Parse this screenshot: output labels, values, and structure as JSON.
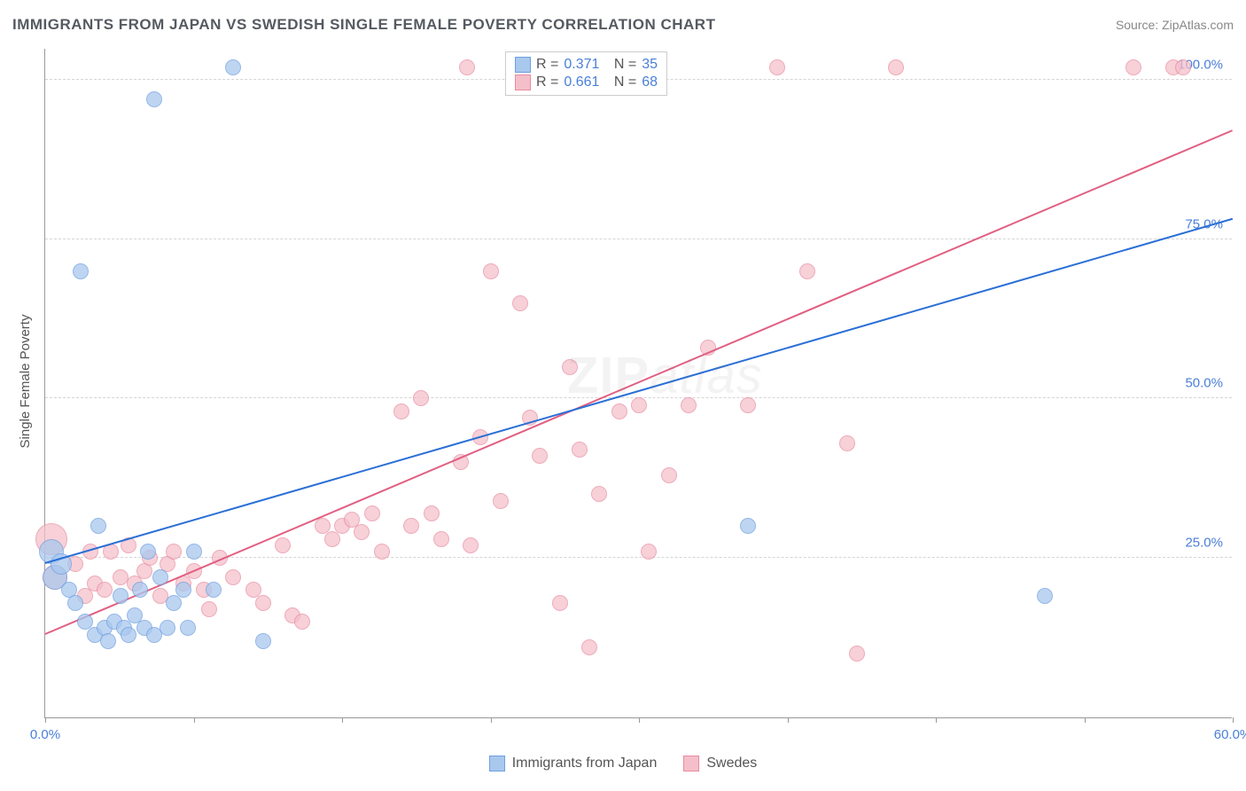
{
  "header": {
    "title": "IMMIGRANTS FROM JAPAN VS SWEDISH SINGLE FEMALE POVERTY CORRELATION CHART",
    "source": "Source: ZipAtlas.com"
  },
  "watermark": {
    "bold": "ZIP",
    "light": "atlas"
  },
  "chart": {
    "type": "scatter",
    "background_color": "#ffffff",
    "grid_color": "#d5d5d5",
    "axis_color": "#999999",
    "text_color": "#555a60",
    "value_color": "#4a7fd8",
    "xlim": [
      0,
      60
    ],
    "ylim": [
      0,
      105
    ],
    "xticks": [
      0,
      7.5,
      15,
      22.5,
      30,
      37.5,
      45,
      52.5,
      60
    ],
    "xtick_labels": {
      "0": "0.0%",
      "60": "60.0%"
    },
    "yticks": [
      25,
      50,
      75,
      100
    ],
    "ytick_labels": {
      "25": "25.0%",
      "50": "50.0%",
      "75": "75.0%",
      "100": "100.0%"
    },
    "yaxis_label": "Single Female Poverty",
    "point_radius": 9,
    "point_radius_large": 14,
    "series_a": {
      "label": "Immigrants from Japan",
      "fill_color": "#a9c8ee",
      "stroke_color": "#6fa0df",
      "opacity": 0.75,
      "line_color": "#2a6fd6",
      "line_width": 2,
      "trend": {
        "x1": 0,
        "y1": 24,
        "x2": 60,
        "y2": 78
      },
      "corr": {
        "r": "0.371",
        "n": "35"
      },
      "points": [
        {
          "x": 0.5,
          "y": 22,
          "r": 14
        },
        {
          "x": 0.3,
          "y": 26,
          "r": 14
        },
        {
          "x": 0.8,
          "y": 24,
          "r": 12
        },
        {
          "x": 9.5,
          "y": 102
        },
        {
          "x": 5.5,
          "y": 97
        },
        {
          "x": 1.8,
          "y": 70
        },
        {
          "x": 2.7,
          "y": 30
        },
        {
          "x": 1.2,
          "y": 20
        },
        {
          "x": 1.5,
          "y": 18
        },
        {
          "x": 2.0,
          "y": 15
        },
        {
          "x": 2.5,
          "y": 13
        },
        {
          "x": 3.0,
          "y": 14
        },
        {
          "x": 3.2,
          "y": 12
        },
        {
          "x": 3.5,
          "y": 15
        },
        {
          "x": 3.8,
          "y": 19
        },
        {
          "x": 4.0,
          "y": 14
        },
        {
          "x": 4.2,
          "y": 13
        },
        {
          "x": 4.5,
          "y": 16
        },
        {
          "x": 4.8,
          "y": 20
        },
        {
          "x": 5.0,
          "y": 14
        },
        {
          "x": 5.2,
          "y": 26
        },
        {
          "x": 5.5,
          "y": 13
        },
        {
          "x": 5.8,
          "y": 22
        },
        {
          "x": 6.2,
          "y": 14
        },
        {
          "x": 6.5,
          "y": 18
        },
        {
          "x": 7.0,
          "y": 20
        },
        {
          "x": 7.2,
          "y": 14
        },
        {
          "x": 7.5,
          "y": 26
        },
        {
          "x": 8.5,
          "y": 20
        },
        {
          "x": 11.0,
          "y": 12
        },
        {
          "x": 35.5,
          "y": 30
        },
        {
          "x": 50.5,
          "y": 19
        },
        {
          "x": 28.2,
          "y": 102
        },
        {
          "x": 28.8,
          "y": 102
        },
        {
          "x": 30.0,
          "y": 102
        }
      ]
    },
    "series_b": {
      "label": "Swedes",
      "fill_color": "#f4bfca",
      "stroke_color": "#e88ba0",
      "opacity": 0.72,
      "line_color": "#e15f82",
      "line_width": 2,
      "trend": {
        "x1": 0,
        "y1": 13,
        "x2": 60,
        "y2": 92
      },
      "corr": {
        "r": "0.661",
        "n": "68"
      },
      "points": [
        {
          "x": 0.3,
          "y": 28,
          "r": 18
        },
        {
          "x": 0.5,
          "y": 22,
          "r": 14
        },
        {
          "x": 1.5,
          "y": 24
        },
        {
          "x": 2.0,
          "y": 19
        },
        {
          "x": 2.3,
          "y": 26
        },
        {
          "x": 2.5,
          "y": 21
        },
        {
          "x": 3.0,
          "y": 20
        },
        {
          "x": 3.3,
          "y": 26
        },
        {
          "x": 3.8,
          "y": 22
        },
        {
          "x": 4.2,
          "y": 27
        },
        {
          "x": 4.5,
          "y": 21
        },
        {
          "x": 5.0,
          "y": 23
        },
        {
          "x": 5.3,
          "y": 25
        },
        {
          "x": 5.8,
          "y": 19
        },
        {
          "x": 6.2,
          "y": 24
        },
        {
          "x": 6.5,
          "y": 26
        },
        {
          "x": 7.0,
          "y": 21
        },
        {
          "x": 7.5,
          "y": 23
        },
        {
          "x": 8.0,
          "y": 20
        },
        {
          "x": 8.3,
          "y": 17
        },
        {
          "x": 8.8,
          "y": 25
        },
        {
          "x": 9.5,
          "y": 22
        },
        {
          "x": 10.5,
          "y": 20
        },
        {
          "x": 11.0,
          "y": 18
        },
        {
          "x": 12.0,
          "y": 27
        },
        {
          "x": 12.5,
          "y": 16
        },
        {
          "x": 13.0,
          "y": 15
        },
        {
          "x": 14.0,
          "y": 30
        },
        {
          "x": 14.5,
          "y": 28
        },
        {
          "x": 15.0,
          "y": 30
        },
        {
          "x": 15.5,
          "y": 31
        },
        {
          "x": 16.0,
          "y": 29
        },
        {
          "x": 16.5,
          "y": 32
        },
        {
          "x": 17.0,
          "y": 26
        },
        {
          "x": 18.0,
          "y": 48
        },
        {
          "x": 18.5,
          "y": 30
        },
        {
          "x": 19.0,
          "y": 50
        },
        {
          "x": 19.5,
          "y": 32
        },
        {
          "x": 20.0,
          "y": 28
        },
        {
          "x": 21.0,
          "y": 40
        },
        {
          "x": 21.5,
          "y": 27
        },
        {
          "x": 21.3,
          "y": 102
        },
        {
          "x": 22.0,
          "y": 44
        },
        {
          "x": 22.5,
          "y": 70
        },
        {
          "x": 23.0,
          "y": 34
        },
        {
          "x": 24.0,
          "y": 65
        },
        {
          "x": 24.5,
          "y": 47
        },
        {
          "x": 25.0,
          "y": 41
        },
        {
          "x": 26.0,
          "y": 18
        },
        {
          "x": 26.5,
          "y": 55
        },
        {
          "x": 27.0,
          "y": 42
        },
        {
          "x": 27.5,
          "y": 11
        },
        {
          "x": 28.0,
          "y": 35
        },
        {
          "x": 29.0,
          "y": 48
        },
        {
          "x": 30.0,
          "y": 49
        },
        {
          "x": 30.5,
          "y": 26
        },
        {
          "x": 31.5,
          "y": 38
        },
        {
          "x": 32.5,
          "y": 49
        },
        {
          "x": 33.5,
          "y": 58
        },
        {
          "x": 35.5,
          "y": 49
        },
        {
          "x": 37.0,
          "y": 102
        },
        {
          "x": 38.5,
          "y": 70
        },
        {
          "x": 40.5,
          "y": 43
        },
        {
          "x": 41.0,
          "y": 10
        },
        {
          "x": 43.0,
          "y": 102
        },
        {
          "x": 55.0,
          "y": 102
        },
        {
          "x": 57.0,
          "y": 102
        },
        {
          "x": 57.5,
          "y": 102
        }
      ]
    }
  },
  "legend": {
    "r_label": "R =",
    "n_label": "N ="
  }
}
